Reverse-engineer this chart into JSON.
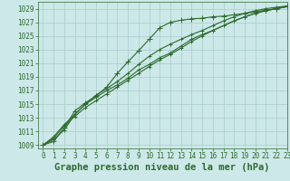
{
  "title": "Graphe pression niveau de la mer (hPa)",
  "background_color": "#cce8e8",
  "grid_color": "#a8cccc",
  "line_color": "#2d6a2d",
  "xlim": [
    -0.5,
    23
  ],
  "ylim": [
    1008.5,
    1030
  ],
  "yticks": [
    1009,
    1011,
    1013,
    1015,
    1017,
    1019,
    1021,
    1023,
    1025,
    1027,
    1029
  ],
  "xticks": [
    0,
    1,
    2,
    3,
    4,
    5,
    6,
    7,
    8,
    9,
    10,
    11,
    12,
    13,
    14,
    15,
    16,
    17,
    18,
    19,
    20,
    21,
    22,
    23
  ],
  "series": [
    {
      "y": [
        1009.0,
        1009.5,
        1011.5,
        1014.0,
        1015.2,
        1016.2,
        1017.5,
        1019.5,
        1021.2,
        1022.8,
        1024.5,
        1026.2,
        1027.0,
        1027.3,
        1027.5,
        1027.6,
        1027.8,
        1027.9,
        1028.1,
        1028.3,
        1028.5,
        1028.8,
        1029.0,
        1029.3
      ],
      "marker": "+",
      "markersize": 4,
      "linewidth": 0.8,
      "zorder": 3
    },
    {
      "y": [
        1009.0,
        1010.2,
        1012.0,
        1013.5,
        1015.0,
        1016.0,
        1017.0,
        1017.8,
        1018.8,
        1020.0,
        1020.8,
        1021.8,
        1022.5,
        1023.5,
        1024.5,
        1025.2,
        1025.8,
        1026.5,
        1027.2,
        1027.8,
        1028.3,
        1028.7,
        1029.0,
        1029.3
      ],
      "marker": "+",
      "markersize": 3,
      "linewidth": 0.8,
      "zorder": 2
    },
    {
      "y": [
        1009.0,
        1010.0,
        1011.8,
        1013.2,
        1014.5,
        1015.5,
        1016.5,
        1017.5,
        1018.5,
        1019.5,
        1020.5,
        1021.5,
        1022.3,
        1023.2,
        1024.2,
        1025.0,
        1025.8,
        1026.5,
        1027.2,
        1027.8,
        1028.3,
        1028.7,
        1029.0,
        1029.3
      ],
      "marker": "+",
      "markersize": 3,
      "linewidth": 0.8,
      "zorder": 2
    },
    {
      "y": [
        1009.0,
        1009.8,
        1011.2,
        1013.5,
        1015.0,
        1016.3,
        1017.3,
        1018.3,
        1019.5,
        1020.8,
        1022.0,
        1023.0,
        1023.8,
        1024.5,
        1025.2,
        1025.8,
        1026.5,
        1027.2,
        1027.8,
        1028.3,
        1028.7,
        1029.0,
        1029.2,
        1029.4
      ],
      "marker": "+",
      "markersize": 3,
      "linewidth": 0.8,
      "zorder": 2
    }
  ],
  "tick_fontsize": 5.5,
  "xlabel_fontsize": 7.5
}
